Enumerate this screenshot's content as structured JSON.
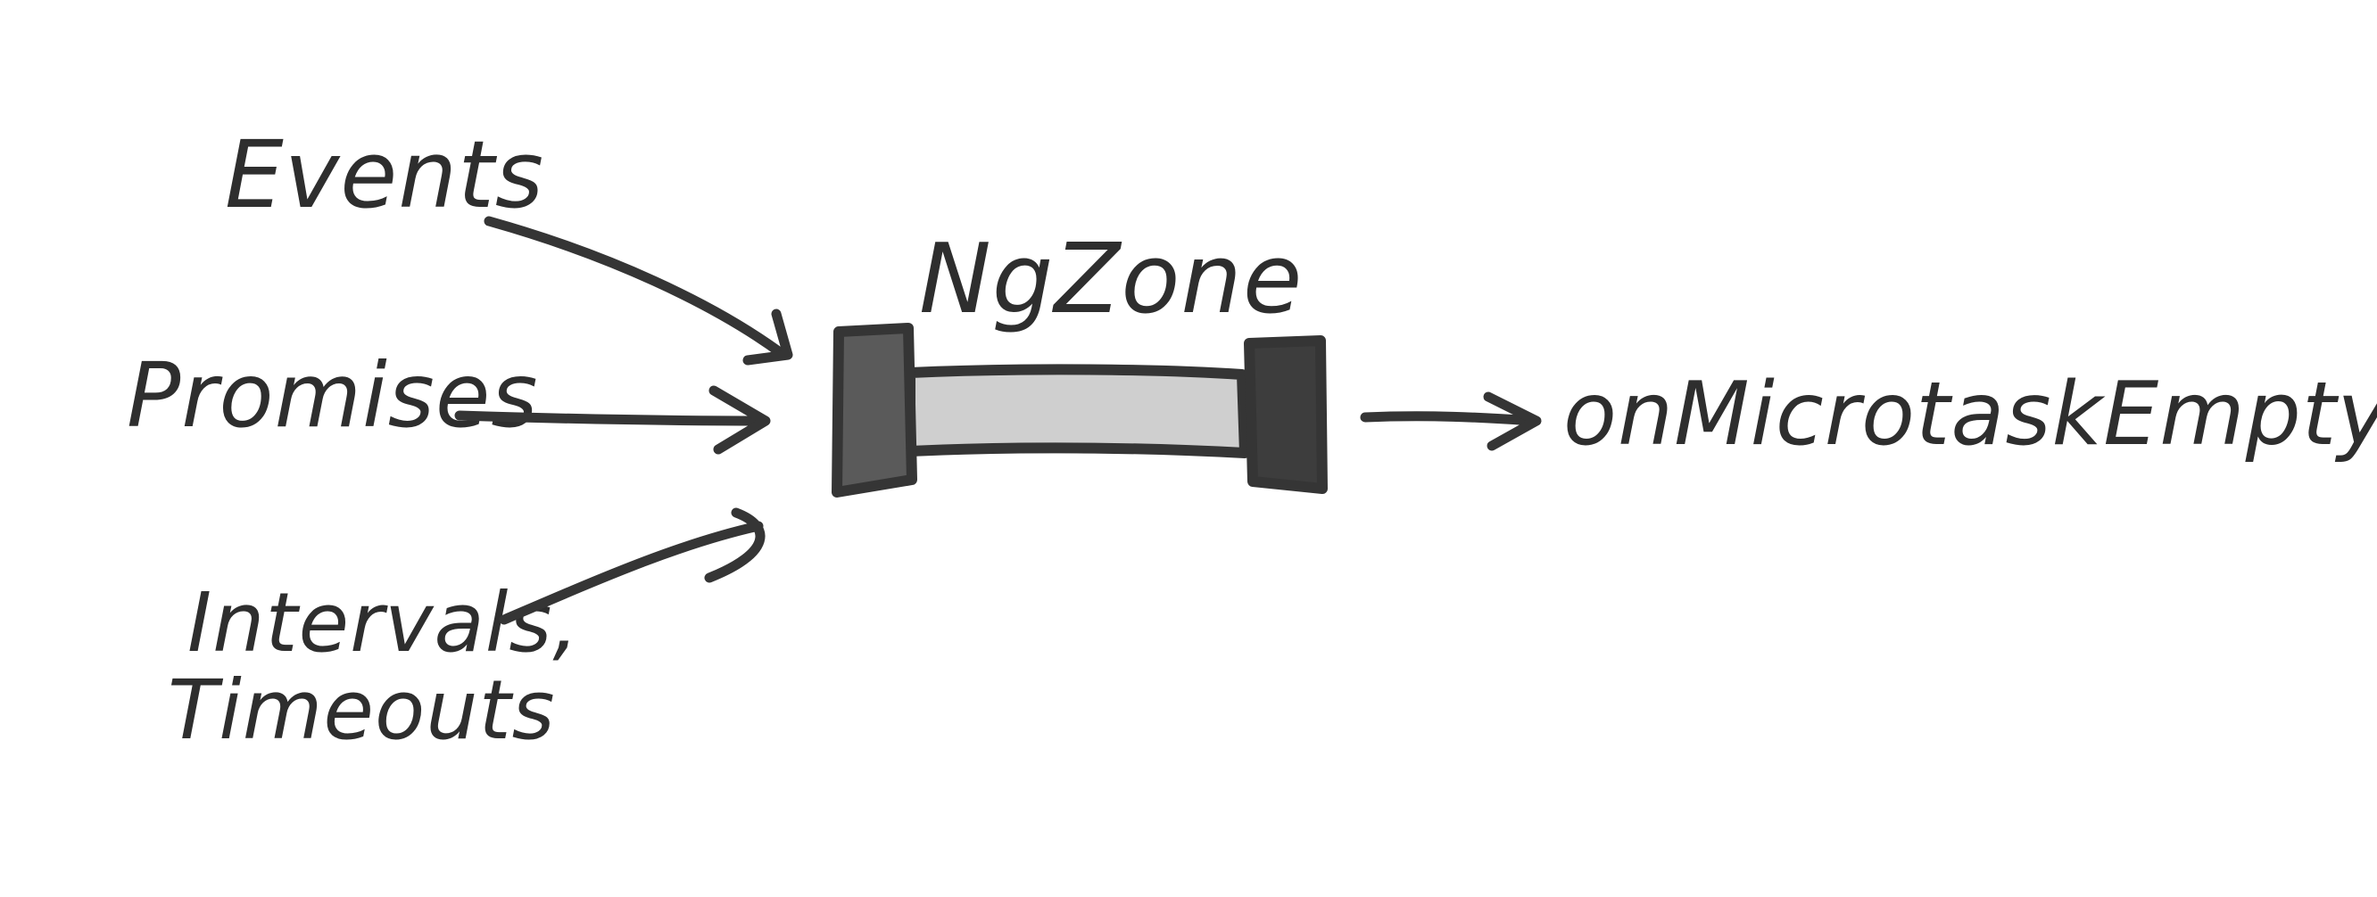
{
  "diagram": {
    "zone_label": "NgZone",
    "inputs": {
      "events": "Events",
      "promises": "Promises",
      "intervals_line1": "Intervals,",
      "intervals_line2": "Timeouts"
    },
    "output": "onMicrotaskEmpty"
  },
  "colors": {
    "ink": "#353535",
    "pipe_fill": "#cfcfcf",
    "left_cap": "#555555",
    "right_cap": "#3f3f3f",
    "background": "#ffffff"
  }
}
